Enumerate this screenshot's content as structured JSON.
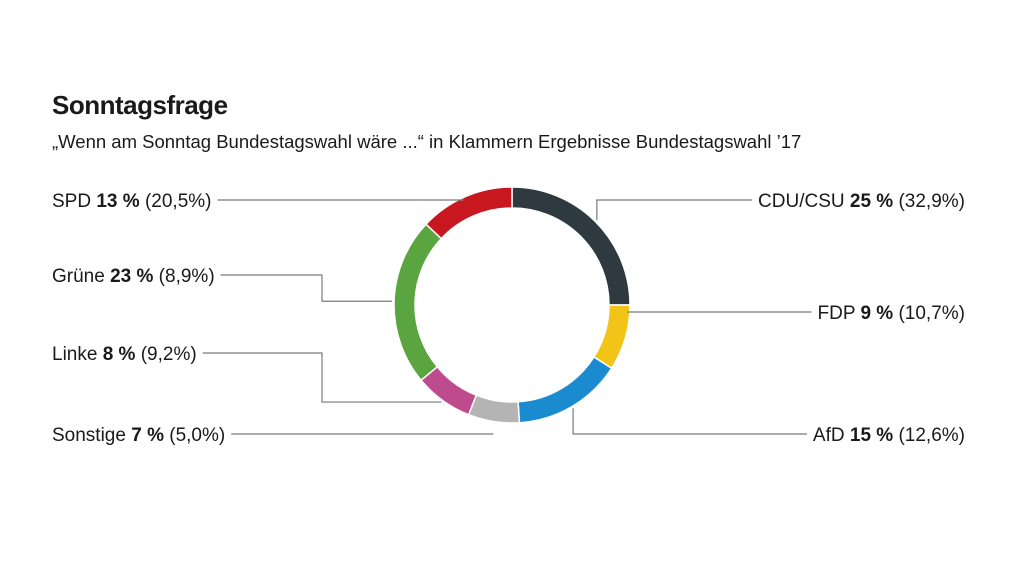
{
  "header": {
    "title": "Sonntagsfrage",
    "subtitle": "„Wenn am Sonntag Bundestagswahl wäre ...“ in Klammern Ergebnisse Bundestagswahl ’17"
  },
  "chart_data": {
    "type": "pie",
    "donut": true,
    "title": "Sonntagsfrage",
    "subtitle": "„Wenn am Sonntag Bundestagswahl wäre ...“ in Klammern Ergebnisse Bundestagswahl ’17",
    "slices": [
      {
        "name": "CDU/CSU",
        "value": 25,
        "value_label": "25 %",
        "previous_label": "(32,9%)",
        "previous": 32.9,
        "color": "#2e3a40"
      },
      {
        "name": "FDP",
        "value": 9,
        "value_label": "9 %",
        "previous_label": "(10,7%)",
        "previous": 10.7,
        "color": "#f2c417"
      },
      {
        "name": "AfD",
        "value": 15,
        "value_label": "15 %",
        "previous_label": "(12,6%)",
        "previous": 12.6,
        "color": "#1b8bcf"
      },
      {
        "name": "Sonstige",
        "value": 7,
        "value_label": "7 %",
        "previous_label": "(5,0%)",
        "previous": 5.0,
        "color": "#b4b4b4"
      },
      {
        "name": "Linke",
        "value": 8,
        "value_label": "8 %",
        "previous_label": "(9,2%)",
        "previous": 9.2,
        "color": "#be4b8e"
      },
      {
        "name": "Grüne",
        "value": 23,
        "value_label": "23 %",
        "previous_label": "(8,9%)",
        "previous": 8.9,
        "color": "#5ba541"
      },
      {
        "name": "SPD",
        "value": 13,
        "value_label": "13 %",
        "previous_label": "(20,5%)",
        "previous": 20.5,
        "color": "#c8171e"
      }
    ],
    "legend": "labels-with-leader-lines"
  }
}
